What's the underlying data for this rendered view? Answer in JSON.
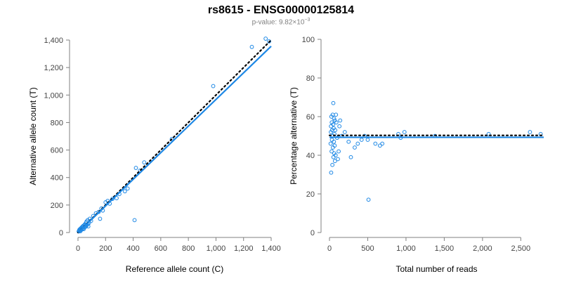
{
  "title": "rs8615 - ENSG00000125814",
  "subtitle": {
    "prefix": "p-value: ",
    "mantissa": "9.82×10",
    "exponent": "−3"
  },
  "colors": {
    "points": "#1e88e5",
    "fit": "#1e88e5",
    "reference": "#000000",
    "axis": "#808080",
    "text": "#444444"
  },
  "chart_data": [
    {
      "type": "scatter",
      "xlabel": "Reference allele count (C)",
      "ylabel": "Alternative allele count (T)",
      "xlim": [
        0,
        1400
      ],
      "ylim": [
        0,
        1400
      ],
      "xticks": [
        0,
        200,
        400,
        600,
        800,
        1000,
        1200,
        1400
      ],
      "xtick_labels": [
        "0",
        "200",
        "400",
        "600",
        "800",
        "1,000",
        "1,200",
        "1,400"
      ],
      "yticks": [
        0,
        200,
        400,
        600,
        800,
        1000,
        1200,
        1400
      ],
      "ytick_labels": [
        "0",
        "200",
        "400",
        "600",
        "800",
        "1,000",
        "1,200",
        "1,400"
      ],
      "grid": false,
      "fit_line": [
        [
          0,
          0
        ],
        [
          1400,
          1355
        ]
      ],
      "reference_line": [
        [
          0,
          0
        ],
        [
          1400,
          1400
        ]
      ],
      "points": [
        [
          5,
          8
        ],
        [
          8,
          12
        ],
        [
          10,
          20
        ],
        [
          12,
          15
        ],
        [
          15,
          25
        ],
        [
          18,
          10
        ],
        [
          20,
          30
        ],
        [
          22,
          18
        ],
        [
          25,
          35
        ],
        [
          28,
          22
        ],
        [
          30,
          40
        ],
        [
          32,
          28
        ],
        [
          35,
          45
        ],
        [
          38,
          30
        ],
        [
          40,
          50
        ],
        [
          42,
          25
        ],
        [
          45,
          38
        ],
        [
          48,
          55
        ],
        [
          50,
          60
        ],
        [
          55,
          42
        ],
        [
          58,
          70
        ],
        [
          60,
          48
        ],
        [
          62,
          80
        ],
        [
          65,
          55
        ],
        [
          70,
          90
        ],
        [
          72,
          62
        ],
        [
          75,
          45
        ],
        [
          80,
          70
        ],
        [
          85,
          100
        ],
        [
          95,
          85
        ],
        [
          110,
          120
        ],
        [
          130,
          140
        ],
        [
          150,
          150
        ],
        [
          160,
          100
        ],
        [
          170,
          175
        ],
        [
          180,
          160
        ],
        [
          200,
          220
        ],
        [
          215,
          230
        ],
        [
          230,
          210
        ],
        [
          250,
          245
        ],
        [
          280,
          250
        ],
        [
          300,
          280
        ],
        [
          340,
          300
        ],
        [
          360,
          320
        ],
        [
          410,
          90
        ],
        [
          420,
          470
        ],
        [
          450,
          450
        ],
        [
          480,
          510
        ],
        [
          680,
          680
        ],
        [
          980,
          1065
        ],
        [
          1260,
          1350
        ],
        [
          1360,
          1410
        ],
        [
          1385,
          1390
        ]
      ]
    },
    {
      "type": "scatter",
      "xlabel": "Total number of reads",
      "ylabel": "Percentage alternative (T)",
      "xlim": [
        0,
        2800
      ],
      "ylim": [
        0,
        100
      ],
      "xticks": [
        0,
        500,
        1000,
        1500,
        2000,
        2500
      ],
      "xtick_labels": [
        "0",
        "500",
        "1,000",
        "1,500",
        "2,000",
        "2,500"
      ],
      "yticks": [
        0,
        20,
        40,
        60,
        80,
        100
      ],
      "ytick_labels": [
        "0",
        "20",
        "40",
        "60",
        "80",
        "100"
      ],
      "grid": false,
      "fit_line": [
        [
          0,
          49.3
        ],
        [
          2800,
          49.3
        ]
      ],
      "reference_line": [
        [
          0,
          50.3
        ],
        [
          2800,
          50.3
        ]
      ],
      "points": [
        [
          15,
          46
        ],
        [
          18,
          52
        ],
        [
          20,
          55
        ],
        [
          22,
          31
        ],
        [
          25,
          60
        ],
        [
          28,
          42
        ],
        [
          30,
          57
        ],
        [
          32,
          48
        ],
        [
          35,
          53
        ],
        [
          38,
          35
        ],
        [
          40,
          50
        ],
        [
          42,
          61
        ],
        [
          45,
          44
        ],
        [
          48,
          56
        ],
        [
          50,
          67
        ],
        [
          52,
          39
        ],
        [
          55,
          54
        ],
        [
          58,
          47
        ],
        [
          60,
          59
        ],
        [
          62,
          41
        ],
        [
          65,
          51
        ],
        [
          68,
          45
        ],
        [
          70,
          58
        ],
        [
          72,
          37
        ],
        [
          75,
          53
        ],
        [
          80,
          40
        ],
        [
          85,
          61
        ],
        [
          90,
          57
        ],
        [
          100,
          49
        ],
        [
          110,
          38
        ],
        [
          120,
          42
        ],
        [
          130,
          55
        ],
        [
          140,
          58
        ],
        [
          160,
          50
        ],
        [
          200,
          52
        ],
        [
          250,
          47
        ],
        [
          280,
          39
        ],
        [
          330,
          44
        ],
        [
          370,
          46
        ],
        [
          420,
          48
        ],
        [
          460,
          50
        ],
        [
          500,
          48
        ],
        [
          510,
          17
        ],
        [
          600,
          46
        ],
        [
          660,
          45
        ],
        [
          690,
          46
        ],
        [
          900,
          51
        ],
        [
          930,
          49
        ],
        [
          980,
          52
        ],
        [
          1380,
          50
        ],
        [
          2080,
          51
        ],
        [
          2620,
          52
        ],
        [
          2760,
          51
        ]
      ]
    }
  ]
}
